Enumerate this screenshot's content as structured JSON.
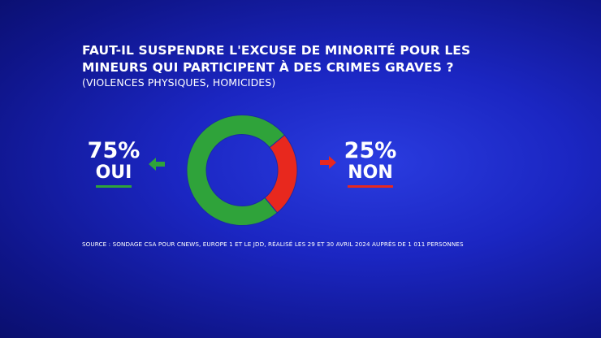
{
  "title": "FAUT-IL SUSPENDRE L'EXCUSE DE MINORITÉ POUR LES MINEURS QUI PARTICIPENT À DES CRIMES GRAVES ?",
  "subtitle": "(VIOLENCES PHYSIQUES, HOMICIDES)",
  "source": "SOURCE : SONDAGE CSA POUR CNEWS, EUROPE 1 ET LE JDD, RÉALISÉ LES 29 ET 30 AVRIL 2024 AUPRÈS DE 1 011 PERSONNES",
  "colors": {
    "background": "#1b26c2",
    "yes": "#2fa33a",
    "no": "#e8281e",
    "text": "#ffffff"
  },
  "icons": {
    "left_arrow": "arrow-left-icon",
    "right_arrow": "arrow-right-icon"
  },
  "chart_data": {
    "type": "pie",
    "title": "FAUT-IL SUSPENDRE L'EXCUSE DE MINORITÉ POUR LES MINEURS QUI PARTICIPENT À DES CRIMES GRAVES ?",
    "subtitle": "(VIOLENCES PHYSIQUES, HOMICIDES)",
    "donut": true,
    "slices": [
      {
        "label": "OUI",
        "value": 75,
        "value_label": "75%",
        "color": "#2fa33a"
      },
      {
        "label": "NON",
        "value": 25,
        "value_label": "25%",
        "color": "#e8281e"
      }
    ]
  }
}
